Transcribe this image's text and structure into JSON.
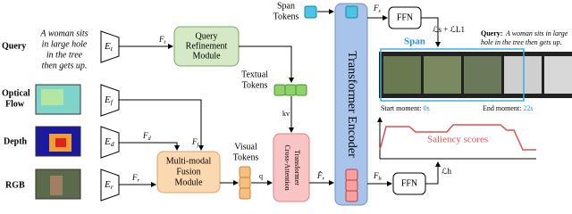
{
  "query": {
    "label": "Query",
    "text": [
      "A woman sits",
      "in large hole",
      "in the tree",
      "then gets up."
    ]
  },
  "inputs": {
    "flow": [
      "Optical",
      "Flow"
    ],
    "depth": "Depth",
    "rgb": "RGB"
  },
  "encoders": [
    {
      "main": "E",
      "sub": "t"
    },
    {
      "main": "E",
      "sub": "f"
    },
    {
      "main": "E",
      "sub": "d"
    },
    {
      "main": "E",
      "sub": "r"
    }
  ],
  "features": {
    "ft": {
      "main": "F",
      "sub": "t"
    },
    "ff": {
      "main": "F",
      "sub": "f"
    },
    "fd": {
      "main": "F",
      "sub": "d"
    },
    "fr": {
      "main": "F",
      "sub": "r"
    },
    "frhat": {
      "main": "F̂",
      "sub": "r"
    },
    "fs": {
      "main": "F",
      "sub": "s"
    },
    "fh": {
      "main": "F",
      "sub": "h"
    }
  },
  "modules": {
    "qrm": [
      "Query",
      "Refinement",
      "Module"
    ],
    "fusion": [
      "Multi-modal",
      "Fusion",
      "Module"
    ],
    "cross": [
      "Cross-Attention",
      "Transformer"
    ],
    "encoder": "Transformer Encoder",
    "ffn_top": "FFN",
    "ffn_bottom": "FFN"
  },
  "tokens": {
    "textual": [
      "Textual",
      "Tokens"
    ],
    "visual": [
      "Visual",
      "Tokens"
    ],
    "span": [
      "Span",
      "Tokens"
    ],
    "kv": "kv",
    "q": "q"
  },
  "losses": {
    "span": "ℒs + ℒL1",
    "saliency": "ℒh"
  },
  "output": {
    "span": "Span",
    "query_label": "Query:",
    "query_text": [
      "A woman sits in large",
      "hole in the tree then gets up."
    ],
    "start_label": "Start moment: ",
    "start_value": "0s",
    "end_label": "End moment: ",
    "end_value": "22s",
    "saliency": "Saliency scores"
  }
}
